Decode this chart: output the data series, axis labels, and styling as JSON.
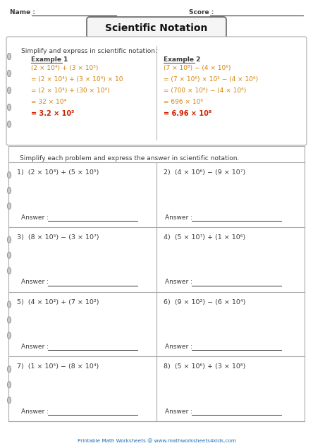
{
  "title": "Scientific Notation",
  "name_label": "Name :",
  "score_label": "Score :",
  "bg_color": "#ffffff",
  "text_color_dark": "#3a3a3a",
  "text_color_orange": "#d4820a",
  "text_color_red": "#cc2200",
  "text_color_blue": "#1a6bb5",
  "text_color_gray": "#555555",
  "example_box_text": "Simplify and express in scientific notation:",
  "example1_title": "Example 1",
  "example1_lines": [
    "(2 × 10⁴) + (3 × 10⁵)",
    "= (2 × 10⁴) + (3 × 10⁴) × 10",
    "= (2 × 10⁴) + (30 × 10⁴)",
    "= 32 × 10⁴",
    "= 3.2 × 10⁵"
  ],
  "example2_title": "Example 2",
  "example2_lines": [
    "(7 × 10⁸) − (4 × 10⁶)",
    "= (7 × 10⁶) × 10² − (4 × 10⁶)",
    "= (700 × 10⁶) − (4 × 10⁶)",
    "= 696 × 10⁶",
    "= 6.96 × 10⁸"
  ],
  "problems_header": "Simplify each problem and express the answer in scientific notation.",
  "problems": [
    [
      "1)  (2 × 10³) + (5 × 10⁵)",
      "2)  (4 × 10⁶) − (9 × 10⁷)"
    ],
    [
      "3)  (8 × 10⁵) − (3 × 10⁷)",
      "4)  (5 × 10⁷) + (1 × 10⁶)"
    ],
    [
      "5)  (4 × 10²) + (7 × 10²)",
      "6)  (9 × 10²) − (6 × 10⁴)"
    ],
    [
      "7)  (1 × 10⁵) − (8 × 10⁴)",
      "8)  (5 × 10⁶) + (3 × 10⁸)"
    ]
  ],
  "footer": "Printable Math Worksheets @ www.mathworksheets4kids.com"
}
